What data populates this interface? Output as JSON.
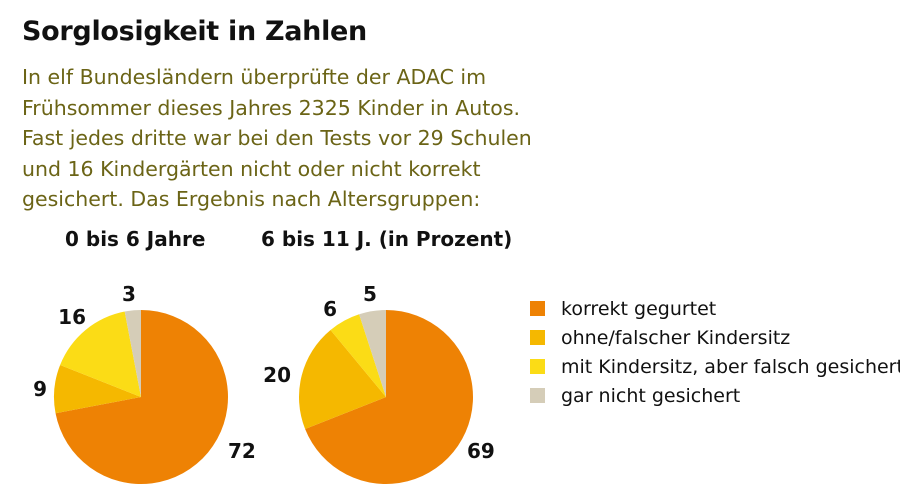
{
  "title": "Sorglosigkeit in Zahlen",
  "intro_lines": [
    "In elf Bundesländern überprüfte der ADAC im",
    "Frühsommer dieses Jahres 2325 Kinder in Autos.",
    "Fast jedes dritte war bei den Tests vor 29 Schulen",
    "und 16 Kindergärten nicht oder nicht korrekt",
    "gesichert. Das Ergebnis nach Altersgruppen:"
  ],
  "colors": {
    "intro_text": "#6b6416"
  },
  "chart_data": [
    {
      "type": "pie",
      "title": "0 bis 6 Jahre",
      "unit": "Prozent",
      "categories": [
        "korrekt gegurtet",
        "ohne/falscher Kindersitz",
        "mit Kindersitz, aber falsch gesichert",
        "gar nicht gesichert"
      ],
      "values": [
        72,
        9,
        16,
        3
      ],
      "colors": [
        "#ee8204",
        "#f5b800",
        "#fbdc16",
        "#d5cdb8"
      ]
    },
    {
      "type": "pie",
      "title": "6 bis 11 J. (in Prozent)",
      "unit": "Prozent",
      "categories": [
        "korrekt gegurtet",
        "ohne/falscher Kindersitz",
        "mit Kindersitz, aber falsch gesichert",
        "gar nicht gesichert"
      ],
      "values": [
        69,
        20,
        6,
        5
      ],
      "colors": [
        "#ee8204",
        "#f5b800",
        "#fbdc16",
        "#d5cdb8"
      ]
    }
  ],
  "legend": [
    {
      "label": "korrekt gegurtet",
      "color": "#ee8204"
    },
    {
      "label": "ohne/falscher Kindersitz",
      "color": "#f5b800"
    },
    {
      "label": "mit Kindersitz, aber falsch gesichert",
      "color": "#fbdc16"
    },
    {
      "label": "gar nicht gesichert",
      "color": "#d5cdb8"
    }
  ]
}
